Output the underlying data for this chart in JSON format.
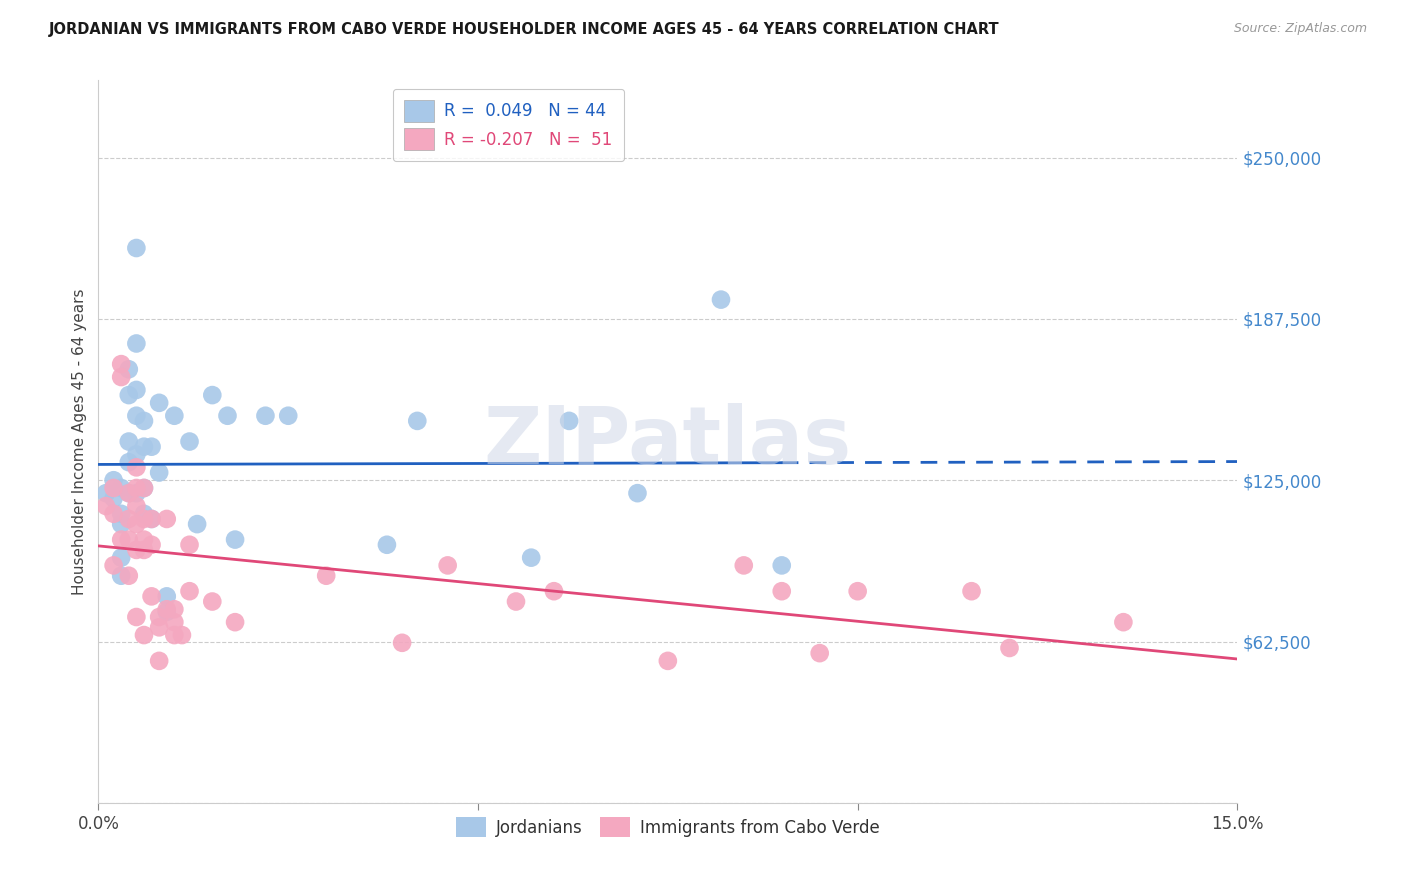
{
  "title": "JORDANIAN VS IMMIGRANTS FROM CABO VERDE HOUSEHOLDER INCOME AGES 45 - 64 YEARS CORRELATION CHART",
  "source": "Source: ZipAtlas.com",
  "ylabel": "Householder Income Ages 45 - 64 years",
  "xlim": [
    0.0,
    0.15
  ],
  "ylim": [
    0,
    280000
  ],
  "yticks": [
    0,
    62500,
    125000,
    187500,
    250000
  ],
  "ytick_labels": [
    "",
    "$62,500",
    "$125,000",
    "$187,500",
    "$250,000"
  ],
  "xticks": [
    0.0,
    0.05,
    0.1,
    0.15
  ],
  "xtick_labels": [
    "0.0%",
    "",
    "",
    "15.0%"
  ],
  "legend1_label": "Jordanians",
  "legend2_label": "Immigrants from Cabo Verde",
  "r1": 0.049,
  "n1": 44,
  "r2": -0.207,
  "n2": 51,
  "blue_color": "#a8c8e8",
  "pink_color": "#f4a8c0",
  "blue_line_color": "#2060c0",
  "pink_line_color": "#e04878",
  "ytick_color": "#4488cc",
  "watermark": "ZIPatlas",
  "jordanians_x": [
    0.001,
    0.002,
    0.002,
    0.003,
    0.003,
    0.003,
    0.003,
    0.003,
    0.004,
    0.004,
    0.004,
    0.004,
    0.004,
    0.005,
    0.005,
    0.005,
    0.005,
    0.005,
    0.005,
    0.006,
    0.006,
    0.006,
    0.006,
    0.007,
    0.007,
    0.008,
    0.008,
    0.009,
    0.009,
    0.01,
    0.012,
    0.013,
    0.015,
    0.017,
    0.018,
    0.022,
    0.025,
    0.038,
    0.042,
    0.057,
    0.062,
    0.071,
    0.082,
    0.09
  ],
  "jordanians_y": [
    120000,
    125000,
    118000,
    122000,
    112000,
    108000,
    95000,
    88000,
    168000,
    158000,
    140000,
    132000,
    120000,
    215000,
    178000,
    160000,
    150000,
    135000,
    120000,
    148000,
    138000,
    122000,
    112000,
    138000,
    110000,
    155000,
    128000,
    80000,
    74000,
    150000,
    140000,
    108000,
    158000,
    150000,
    102000,
    150000,
    150000,
    100000,
    148000,
    95000,
    148000,
    120000,
    195000,
    92000
  ],
  "caboverde_x": [
    0.001,
    0.002,
    0.002,
    0.002,
    0.003,
    0.003,
    0.003,
    0.004,
    0.004,
    0.004,
    0.004,
    0.005,
    0.005,
    0.005,
    0.005,
    0.005,
    0.005,
    0.006,
    0.006,
    0.006,
    0.006,
    0.006,
    0.007,
    0.007,
    0.007,
    0.008,
    0.008,
    0.008,
    0.009,
    0.009,
    0.01,
    0.01,
    0.01,
    0.011,
    0.012,
    0.012,
    0.015,
    0.018,
    0.03,
    0.04,
    0.046,
    0.055,
    0.06,
    0.075,
    0.085,
    0.09,
    0.095,
    0.1,
    0.115,
    0.12,
    0.135
  ],
  "caboverde_y": [
    115000,
    122000,
    112000,
    92000,
    170000,
    165000,
    102000,
    120000,
    110000,
    102000,
    88000,
    130000,
    122000,
    115000,
    108000,
    98000,
    72000,
    122000,
    110000,
    102000,
    98000,
    65000,
    110000,
    100000,
    80000,
    72000,
    68000,
    55000,
    110000,
    75000,
    70000,
    65000,
    75000,
    65000,
    100000,
    82000,
    78000,
    70000,
    88000,
    62000,
    92000,
    78000,
    82000,
    55000,
    92000,
    82000,
    58000,
    82000,
    82000,
    60000,
    70000
  ]
}
